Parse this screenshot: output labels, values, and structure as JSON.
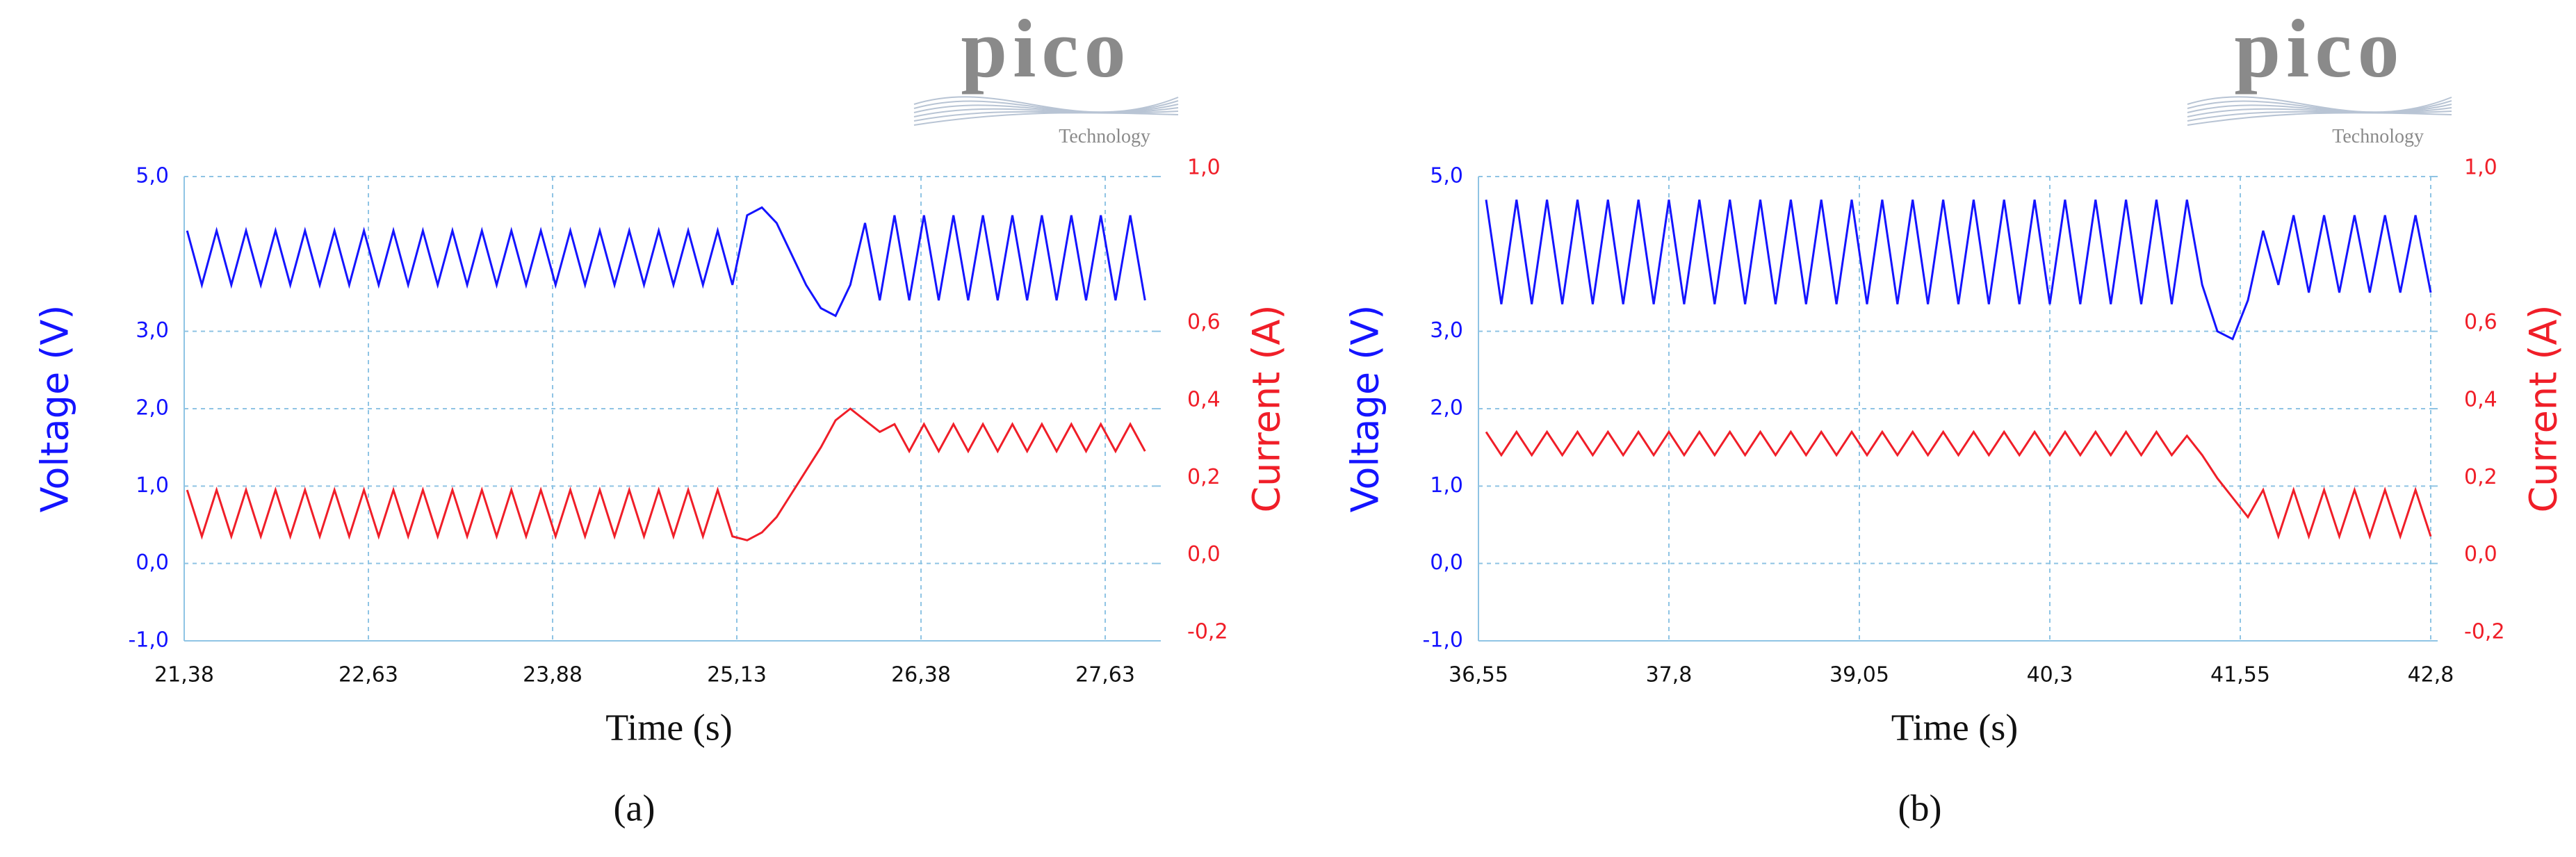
{
  "chart_data": [
    {
      "type": "line",
      "panel_label": "(a)",
      "logo_text": "pico",
      "logo_subtext": "Technology",
      "xlabel": "Time (s)",
      "ylabel": "Voltage (V)",
      "y2label": "Current (A)",
      "grid": true,
      "xlim": [
        21.38,
        27.96
      ],
      "xticks": [
        {
          "value": 21.38,
          "label": "21,38"
        },
        {
          "value": 22.63,
          "label": "22,63"
        },
        {
          "value": 23.88,
          "label": "23,88"
        },
        {
          "value": 25.13,
          "label": "25,13"
        },
        {
          "value": 26.38,
          "label": "26,38"
        },
        {
          "value": 27.63,
          "label": "27,63"
        }
      ],
      "ylim": [
        -1,
        5
      ],
      "yticks": [
        {
          "value": -1,
          "label": "-1,0"
        },
        {
          "value": 0,
          "label": "0,0"
        },
        {
          "value": 1,
          "label": "1,0"
        },
        {
          "value": 2,
          "label": "2,0"
        },
        {
          "value": 3,
          "label": "3,0"
        },
        {
          "value": 5,
          "label": "5,0"
        }
      ],
      "y2lim": [
        -0.2,
        1.0
      ],
      "y2ticks": [
        {
          "value": -0.2,
          "label": "-0,2"
        },
        {
          "value": 0,
          "label": "0,0"
        },
        {
          "value": 0.2,
          "label": "0,2"
        },
        {
          "value": 0.4,
          "label": "0,4"
        },
        {
          "value": 0.6,
          "label": "0,6"
        },
        {
          "value": 1.0,
          "label": "1,0"
        }
      ],
      "x": [
        21.4,
        21.5,
        21.6,
        21.7,
        21.8,
        21.9,
        22.0,
        22.1,
        22.2,
        22.3,
        22.4,
        22.5,
        22.6,
        22.7,
        22.8,
        22.9,
        23.0,
        23.1,
        23.2,
        23.3,
        23.4,
        23.5,
        23.6,
        23.7,
        23.8,
        23.9,
        24.0,
        24.1,
        24.2,
        24.3,
        24.4,
        24.5,
        24.6,
        24.7,
        24.8,
        24.9,
        25.0,
        25.1,
        25.2,
        25.3,
        25.4,
        25.5,
        25.6,
        25.7,
        25.8,
        25.9,
        26.0,
        26.1,
        26.2,
        26.3,
        26.4,
        26.5,
        26.6,
        26.7,
        26.8,
        26.9,
        27.0,
        27.1,
        27.2,
        27.3,
        27.4,
        27.5,
        27.6,
        27.7,
        27.8,
        27.9
      ],
      "series": [
        {
          "color": "#1414ff",
          "values": [
            4.3,
            3.6,
            4.3,
            3.6,
            4.3,
            3.6,
            4.3,
            3.6,
            4.3,
            3.6,
            4.3,
            3.6,
            4.3,
            3.6,
            4.3,
            3.6,
            4.3,
            3.6,
            4.3,
            3.6,
            4.3,
            3.6,
            4.3,
            3.6,
            4.3,
            3.6,
            4.3,
            3.6,
            4.3,
            3.6,
            4.3,
            3.6,
            4.3,
            3.6,
            4.3,
            3.6,
            4.3,
            3.6,
            4.5,
            4.6,
            4.4,
            4.0,
            3.6,
            3.3,
            3.2,
            3.6,
            4.4,
            3.4,
            4.5,
            3.4,
            4.5,
            3.4,
            4.5,
            3.4,
            4.5,
            3.4,
            4.5,
            3.4,
            4.5,
            3.4,
            4.5,
            3.4,
            4.5,
            3.4,
            4.5,
            3.4
          ]
        },
        {
          "color": "#f01e28",
          "axis": "y2",
          "values": [
            0.19,
            0.07,
            0.19,
            0.07,
            0.19,
            0.07,
            0.19,
            0.07,
            0.19,
            0.07,
            0.19,
            0.07,
            0.19,
            0.07,
            0.19,
            0.07,
            0.19,
            0.07,
            0.19,
            0.07,
            0.19,
            0.07,
            0.19,
            0.07,
            0.19,
            0.07,
            0.19,
            0.07,
            0.19,
            0.07,
            0.19,
            0.07,
            0.19,
            0.07,
            0.19,
            0.07,
            0.19,
            0.07,
            0.06,
            0.08,
            0.12,
            0.18,
            0.24,
            0.3,
            0.37,
            0.4,
            0.37,
            0.34,
            0.36,
            0.29,
            0.36,
            0.29,
            0.36,
            0.29,
            0.36,
            0.29,
            0.36,
            0.29,
            0.36,
            0.29,
            0.36,
            0.29,
            0.36,
            0.29,
            0.36,
            0.29
          ]
        }
      ]
    },
    {
      "type": "line",
      "panel_label": "(b)",
      "logo_text": "pico",
      "logo_subtext": "Technology",
      "xlabel": "Time (s)",
      "ylabel": "Voltage (V)",
      "y2label": "Current (A)",
      "grid": true,
      "xlim": [
        36.55,
        42.8
      ],
      "xticks": [
        {
          "value": 36.55,
          "label": "36,55"
        },
        {
          "value": 37.8,
          "label": "37,8"
        },
        {
          "value": 39.05,
          "label": "39,05"
        },
        {
          "value": 40.3,
          "label": "40,3"
        },
        {
          "value": 41.55,
          "label": "41,55"
        },
        {
          "value": 42.8,
          "label": "42,8"
        }
      ],
      "ylim": [
        -1,
        5
      ],
      "yticks": [
        {
          "value": -1,
          "label": "-1,0"
        },
        {
          "value": 0,
          "label": "0,0"
        },
        {
          "value": 1,
          "label": "1,0"
        },
        {
          "value": 2,
          "label": "2,0"
        },
        {
          "value": 3,
          "label": "3,0"
        },
        {
          "value": 5,
          "label": "5,0"
        }
      ],
      "y2lim": [
        -0.2,
        1.0
      ],
      "y2ticks": [
        {
          "value": -0.2,
          "label": "-0,2"
        },
        {
          "value": 0,
          "label": "0,0"
        },
        {
          "value": 0.2,
          "label": "0,2"
        },
        {
          "value": 0.4,
          "label": "0,4"
        },
        {
          "value": 0.6,
          "label": "0,6"
        },
        {
          "value": 1.0,
          "label": "1,0"
        }
      ],
      "x": [
        36.6,
        36.7,
        36.8,
        36.9,
        37.0,
        37.1,
        37.2,
        37.3,
        37.4,
        37.5,
        37.6,
        37.7,
        37.8,
        37.9,
        38.0,
        38.1,
        38.2,
        38.3,
        38.4,
        38.5,
        38.6,
        38.7,
        38.8,
        38.9,
        39.0,
        39.1,
        39.2,
        39.3,
        39.4,
        39.5,
        39.6,
        39.7,
        39.8,
        39.9,
        40.0,
        40.1,
        40.2,
        40.3,
        40.4,
        40.5,
        40.6,
        40.7,
        40.8,
        40.9,
        41.0,
        41.1,
        41.2,
        41.3,
        41.4,
        41.5,
        41.6,
        41.7,
        41.8,
        41.9,
        42.0,
        42.1,
        42.2,
        42.3,
        42.4,
        42.5,
        42.6,
        42.7,
        42.8
      ],
      "series": [
        {
          "color": "#1414ff",
          "values": [
            4.7,
            3.35,
            4.7,
            3.35,
            4.7,
            3.35,
            4.7,
            3.35,
            4.7,
            3.35,
            4.7,
            3.35,
            4.7,
            3.35,
            4.7,
            3.35,
            4.7,
            3.35,
            4.7,
            3.35,
            4.7,
            3.35,
            4.7,
            3.35,
            4.7,
            3.35,
            4.7,
            3.35,
            4.7,
            3.35,
            4.7,
            3.35,
            4.7,
            3.35,
            4.7,
            3.35,
            4.7,
            3.35,
            4.7,
            3.35,
            4.7,
            3.35,
            4.7,
            3.35,
            4.7,
            3.35,
            4.7,
            3.6,
            3.0,
            2.9,
            3.4,
            4.3,
            3.6,
            4.5,
            3.5,
            4.5,
            3.5,
            4.5,
            3.5,
            4.5,
            3.5,
            4.5,
            3.5
          ]
        },
        {
          "color": "#f01e28",
          "axis": "y2",
          "values": [
            0.34,
            0.28,
            0.34,
            0.28,
            0.34,
            0.28,
            0.34,
            0.28,
            0.34,
            0.28,
            0.34,
            0.28,
            0.34,
            0.28,
            0.34,
            0.28,
            0.34,
            0.28,
            0.34,
            0.28,
            0.34,
            0.28,
            0.34,
            0.28,
            0.34,
            0.28,
            0.34,
            0.28,
            0.34,
            0.28,
            0.34,
            0.28,
            0.34,
            0.28,
            0.34,
            0.28,
            0.34,
            0.28,
            0.34,
            0.28,
            0.34,
            0.28,
            0.34,
            0.28,
            0.34,
            0.28,
            0.33,
            0.28,
            0.22,
            0.17,
            0.12,
            0.19,
            0.07,
            0.19,
            0.07,
            0.19,
            0.07,
            0.19,
            0.07,
            0.19,
            0.07,
            0.19,
            0.07
          ]
        }
      ]
    }
  ]
}
